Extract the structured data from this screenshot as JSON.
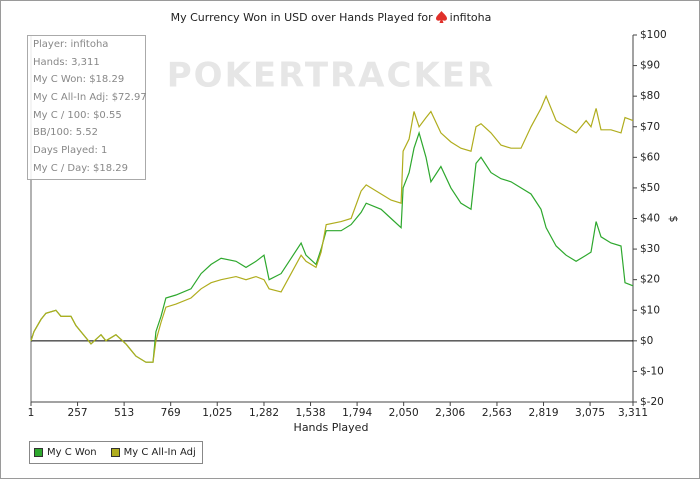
{
  "chart_data": {
    "type": "line",
    "title": "My Currency Won in USD over Hands Played for",
    "player": "infitoha",
    "watermark": "POKERTRACKER",
    "x_label": "Hands Played",
    "y_label": "$",
    "stats": [
      "Player: infitoha",
      "Hands: 3,311",
      "My C Won: $18.29",
      "My C All-In Adj: $72.97",
      "My C / 100: $0.55",
      "BB/100: 5.52",
      "Days Played: 1",
      "My C / Day: $18.29"
    ],
    "x": [
      1,
      17,
      56,
      83,
      138,
      166,
      221,
      248,
      276,
      331,
      386,
      413,
      468,
      523,
      578,
      633,
      672,
      688,
      716,
      743,
      798,
      881,
      936,
      991,
      1046,
      1128,
      1183,
      1238,
      1282,
      1310,
      1376,
      1431,
      1486,
      1513,
      1568,
      1596,
      1624,
      1706,
      1761,
      1816,
      1844,
      1926,
      1981,
      2036,
      2047,
      2080,
      2107,
      2135,
      2173,
      2200,
      2255,
      2310,
      2365,
      2420,
      2448,
      2475,
      2530,
      2585,
      2640,
      2695,
      2750,
      2805,
      2833,
      2888,
      2943,
      2998,
      3053,
      3080,
      3108,
      3135,
      3190,
      3245,
      3267,
      3311
    ],
    "series": [
      {
        "name": "My C Won",
        "color": "#2ea82e",
        "values": [
          0,
          3,
          7,
          9,
          10,
          8,
          8,
          5,
          3,
          -1,
          2,
          0,
          2,
          -1,
          -5,
          -7,
          -7,
          3,
          8,
          14,
          15,
          17,
          22,
          25,
          27,
          26,
          24,
          26,
          28,
          20,
          22,
          27,
          32,
          28,
          25,
          30,
          36,
          36,
          38,
          42,
          45,
          43,
          40,
          37,
          50,
          55,
          63,
          68,
          60,
          52,
          57,
          50,
          45,
          43,
          58,
          60,
          55,
          53,
          52,
          50,
          48,
          43,
          37,
          31,
          28,
          26,
          28,
          29,
          39,
          34,
          32,
          31,
          19,
          18
        ]
      },
      {
        "name": "My C All-In Adj",
        "color": "#b0ad1e",
        "values": [
          0,
          3,
          7,
          9,
          10,
          8,
          8,
          5,
          3,
          -1,
          2,
          0,
          2,
          -1,
          -5,
          -7,
          -7,
          0,
          6,
          11,
          12,
          14,
          17,
          19,
          20,
          21,
          20,
          21,
          20,
          17,
          16,
          22,
          28,
          26,
          24,
          29,
          38,
          39,
          40,
          49,
          51,
          48,
          46,
          45,
          62,
          66,
          75,
          70,
          73,
          75,
          68,
          65,
          63,
          62,
          70,
          71,
          68,
          64,
          63,
          63,
          70,
          76,
          80,
          72,
          70,
          68,
          72,
          70,
          76,
          69,
          69,
          68,
          73,
          72
        ]
      }
    ],
    "xlim": [
      1,
      3311
    ],
    "xticks": [
      1,
      257,
      513,
      769,
      {
        "value": 1025,
        "label": "1,025"
      },
      {
        "value": 1282,
        "label": "1,282"
      },
      {
        "value": 1538,
        "label": "1,538"
      },
      {
        "value": 1794,
        "label": "1,794"
      },
      {
        "value": 2050,
        "label": "2,050"
      },
      {
        "value": 2306,
        "label": "2,306"
      },
      {
        "value": 2563,
        "label": "2,563"
      },
      {
        "value": 2819,
        "label": "2,819"
      },
      {
        "value": 3075,
        "label": "3,075"
      },
      {
        "value": 3311,
        "label": "3,311"
      }
    ],
    "ylim": [
      -20,
      100
    ],
    "yticks": [
      {
        "value": 100,
        "label": "$100"
      },
      {
        "value": 90,
        "label": "$90"
      },
      {
        "value": 80,
        "label": "$80"
      },
      {
        "value": 70,
        "label": "$70"
      },
      {
        "value": 60,
        "label": "$60"
      },
      {
        "value": 50,
        "label": "$50"
      },
      {
        "value": 40,
        "label": "$40"
      },
      {
        "value": 30,
        "label": "$30"
      },
      {
        "value": 20,
        "label": "$20"
      },
      {
        "value": 10,
        "label": "$10"
      },
      {
        "value": 0,
        "label": "$0"
      },
      {
        "value": -10,
        "label": "$-10"
      },
      {
        "value": -20,
        "label": "$-20"
      }
    ],
    "y_axis_side": "right",
    "grid": false
  }
}
